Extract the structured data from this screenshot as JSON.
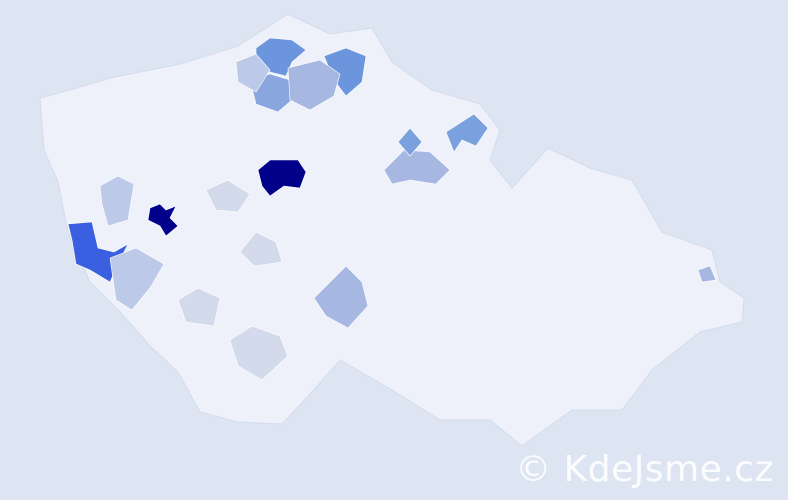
{
  "map": {
    "base_color": "#eef1fa",
    "border_color": "#d3dbee",
    "background": "#dde5f2",
    "regions": [
      {
        "id": "r1",
        "level": 1.0,
        "color": "#00008b"
      },
      {
        "id": "r2",
        "level": 1.0,
        "color": "#00008b"
      },
      {
        "id": "r3",
        "level": 0.8,
        "color": "#3a5fe0"
      },
      {
        "id": "r4",
        "level": 0.6,
        "color": "#6b95dc"
      },
      {
        "id": "r5",
        "level": 0.6,
        "color": "#6b95dc"
      },
      {
        "id": "r6",
        "level": 0.55,
        "color": "#7aa0dd"
      },
      {
        "id": "r7",
        "level": 0.5,
        "color": "#8aa6de"
      },
      {
        "id": "r8",
        "level": 0.4,
        "color": "#a6b8e2"
      },
      {
        "id": "r9",
        "level": 0.4,
        "color": "#a6b8e2"
      },
      {
        "id": "r10",
        "level": 0.4,
        "color": "#a6b8e2"
      },
      {
        "id": "r11",
        "level": 0.55,
        "color": "#7aa0dd"
      },
      {
        "id": "r12",
        "level": 0.3,
        "color": "#bcc9e8"
      },
      {
        "id": "r13",
        "level": 0.3,
        "color": "#bcc9e8"
      },
      {
        "id": "r14",
        "level": 0.3,
        "color": "#bcc9e8"
      },
      {
        "id": "r15",
        "level": 0.2,
        "color": "#d3daec"
      },
      {
        "id": "r16",
        "level": 0.2,
        "color": "#d3daec"
      },
      {
        "id": "r17",
        "level": 0.2,
        "color": "#d3daec"
      },
      {
        "id": "r18",
        "level": 0.2,
        "color": "#d3daec"
      },
      {
        "id": "r19",
        "level": 0.4,
        "color": "#a6b8e2"
      }
    ]
  },
  "watermark": "© KdeJsme.cz"
}
